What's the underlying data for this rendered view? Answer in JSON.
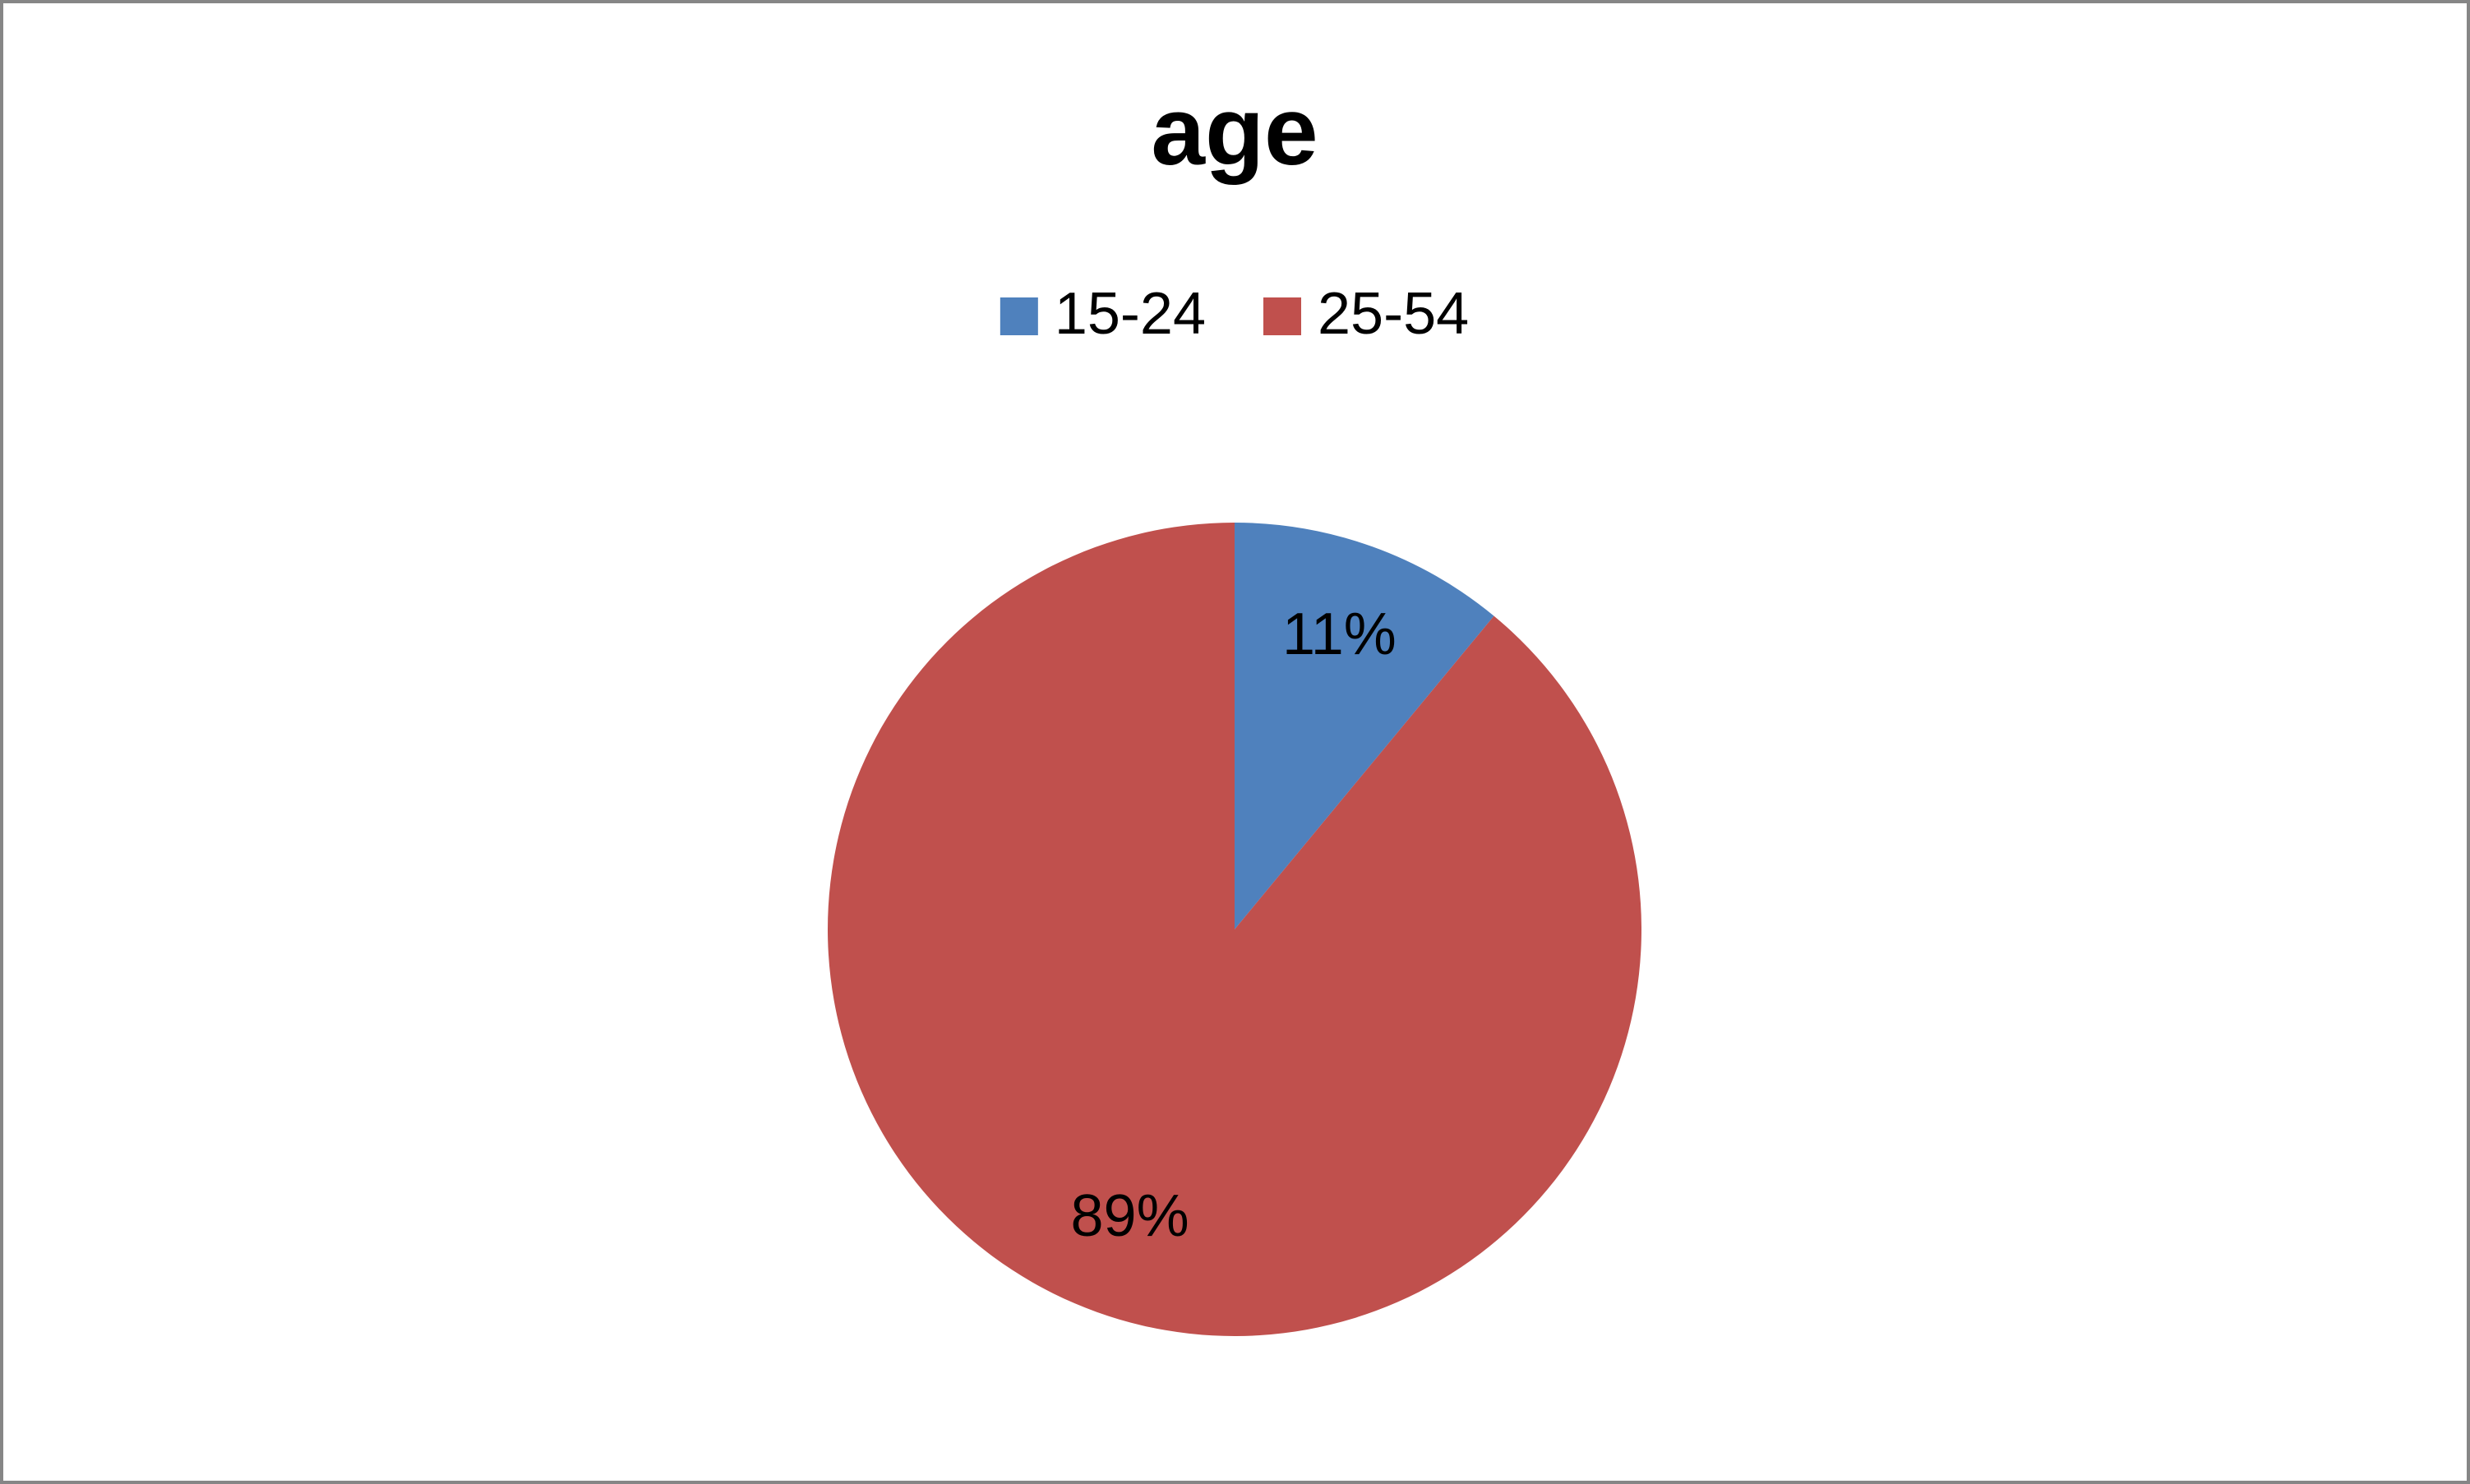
{
  "chart_data": {
    "type": "pie",
    "title": "age",
    "categories": [
      "15-24",
      "25-54"
    ],
    "values": [
      11,
      89
    ],
    "value_labels": [
      "11%",
      "89%"
    ],
    "colors": [
      "#4f81bd",
      "#c0504d"
    ],
    "legend": "top"
  }
}
